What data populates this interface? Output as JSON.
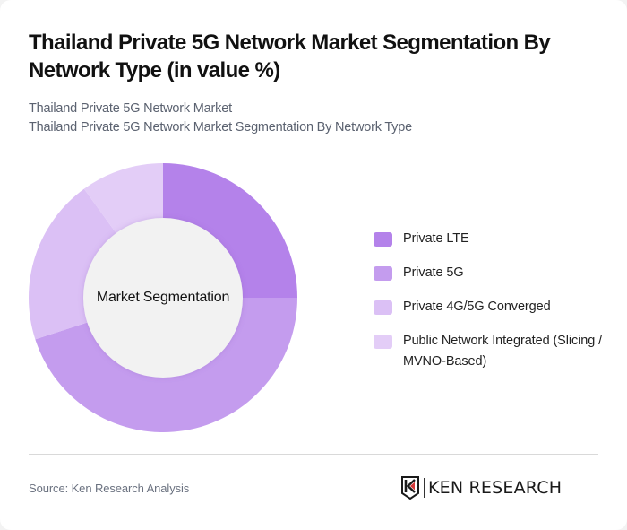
{
  "header": {
    "title": "Thailand Private 5G Network Market Segmentation By Network Type (in value %)",
    "subtitle_line1": "Thailand Private 5G Network Market",
    "subtitle_line2": "Thailand Private 5G Network Market Segmentation By Network Type"
  },
  "chart": {
    "center_label": "Market Segmentation",
    "legend": [
      {
        "label": "Private LTE",
        "color": "#B482EA"
      },
      {
        "label": "Private 5G",
        "color": "#C49CEE"
      },
      {
        "label": "Private 4G/5G Converged",
        "color": "#DBC0F5"
      },
      {
        "label": "Public Network Integrated (Slicing / MVNO-Based)",
        "color": "#E3CDF7"
      }
    ],
    "inner_color": "#F2F2F2"
  },
  "footer": {
    "source": "Source: Ken Research Analysis",
    "logo_text": "KEN RESEARCH"
  },
  "chart_data": {
    "type": "pie",
    "subtype": "donut",
    "title": "Thailand Private 5G Network Market Segmentation By Network Type (in value %)",
    "subtitle": "Thailand Private 5G Network Market Segmentation By Network Type",
    "center_label": "Market Segmentation",
    "categories": [
      "Private LTE",
      "Private 5G",
      "Private 4G/5G Converged",
      "Public Network Integrated (Slicing / MVNO-Based)"
    ],
    "values": [
      25,
      45,
      20,
      10
    ],
    "unit": "%",
    "colors": [
      "#B482EA",
      "#C49CEE",
      "#DBC0F5",
      "#E3CDF7"
    ],
    "start_angle": "12 o'clock, clockwise",
    "legend_position": "right",
    "source": "Source: Ken Research Analysis"
  }
}
